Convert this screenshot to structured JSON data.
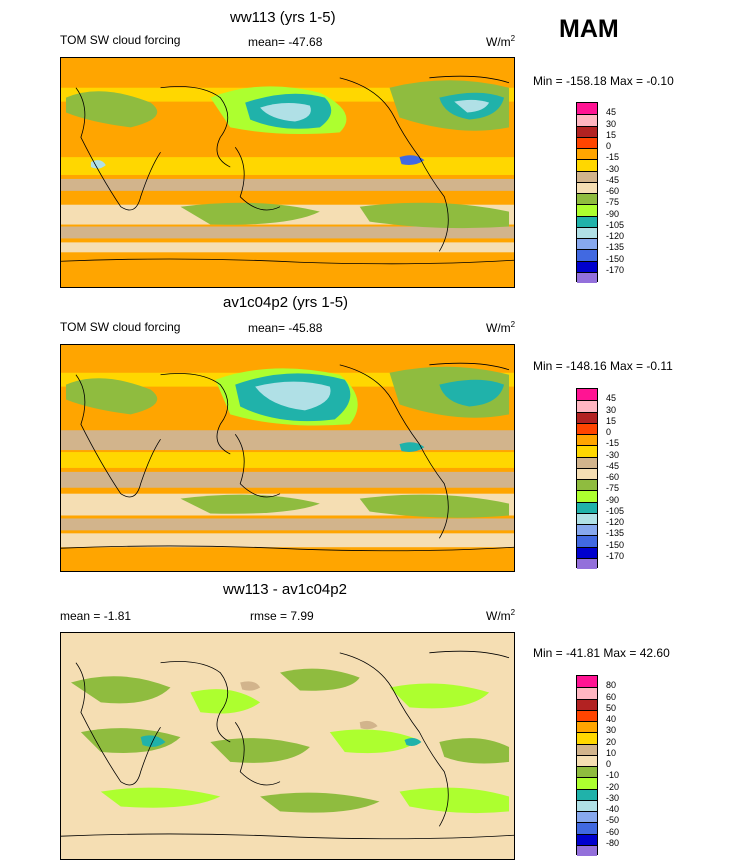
{
  "season": "MAM",
  "panels": [
    {
      "title": "ww113 (yrs 1-5)",
      "left_label": "TOM SW cloud forcing",
      "center_label": "mean= -47.68",
      "unit_base": "W/m",
      "unit_exp": "2",
      "minmax": "Min = -158.18 Max =  -0.10",
      "colorbar": {
        "labels": [
          "45",
          "30",
          "15",
          "0",
          "-15",
          "-30",
          "-45",
          "-60",
          "-75",
          "-90",
          "-105",
          "-120",
          "-135",
          "-150",
          "-170"
        ],
        "colors": [
          "#ff1493",
          "#ffb6c1",
          "#b22222",
          "#ff4500",
          "#ffa500",
          "#ffd700",
          "#d2b48c",
          "#f5deb3",
          "#8fbc3f",
          "#adff2f",
          "#20b2aa",
          "#b0e0e6",
          "#87a8ee",
          "#4169e1",
          "#0000cd",
          "#9370db"
        ]
      }
    },
    {
      "title": "av1c04p2 (yrs 1-5)",
      "left_label": "TOM SW cloud forcing",
      "center_label": "mean= -45.88",
      "unit_base": "W/m",
      "unit_exp": "2",
      "minmax": "Min = -148.16 Max =  -0.11",
      "colorbar": {
        "labels": [
          "45",
          "30",
          "15",
          "0",
          "-15",
          "-30",
          "-45",
          "-60",
          "-75",
          "-90",
          "-105",
          "-120",
          "-135",
          "-150",
          "-170"
        ],
        "colors": [
          "#ff1493",
          "#ffb6c1",
          "#b22222",
          "#ff4500",
          "#ffa500",
          "#ffd700",
          "#d2b48c",
          "#f5deb3",
          "#8fbc3f",
          "#adff2f",
          "#20b2aa",
          "#b0e0e6",
          "#87a8ee",
          "#4169e1",
          "#0000cd",
          "#9370db"
        ]
      }
    },
    {
      "title": "ww113 - av1c04p2",
      "left_label": "mean =  -1.81",
      "center_label": "rmse =   7.99",
      "unit_base": "W/m",
      "unit_exp": "2",
      "minmax": "Min = -41.81 Max =  42.60",
      "colorbar": {
        "labels": [
          "80",
          "60",
          "50",
          "40",
          "30",
          "20",
          "10",
          "0",
          "-10",
          "-20",
          "-30",
          "-40",
          "-50",
          "-60",
          "-80"
        ],
        "colors": [
          "#ff1493",
          "#ffb6c1",
          "#b22222",
          "#ff4500",
          "#ffa500",
          "#ffd700",
          "#d2b48c",
          "#f5deb3",
          "#8fbc3f",
          "#adff2f",
          "#20b2aa",
          "#b0e0e6",
          "#87a8ee",
          "#4169e1",
          "#0000cd",
          "#9370db"
        ]
      }
    }
  ]
}
